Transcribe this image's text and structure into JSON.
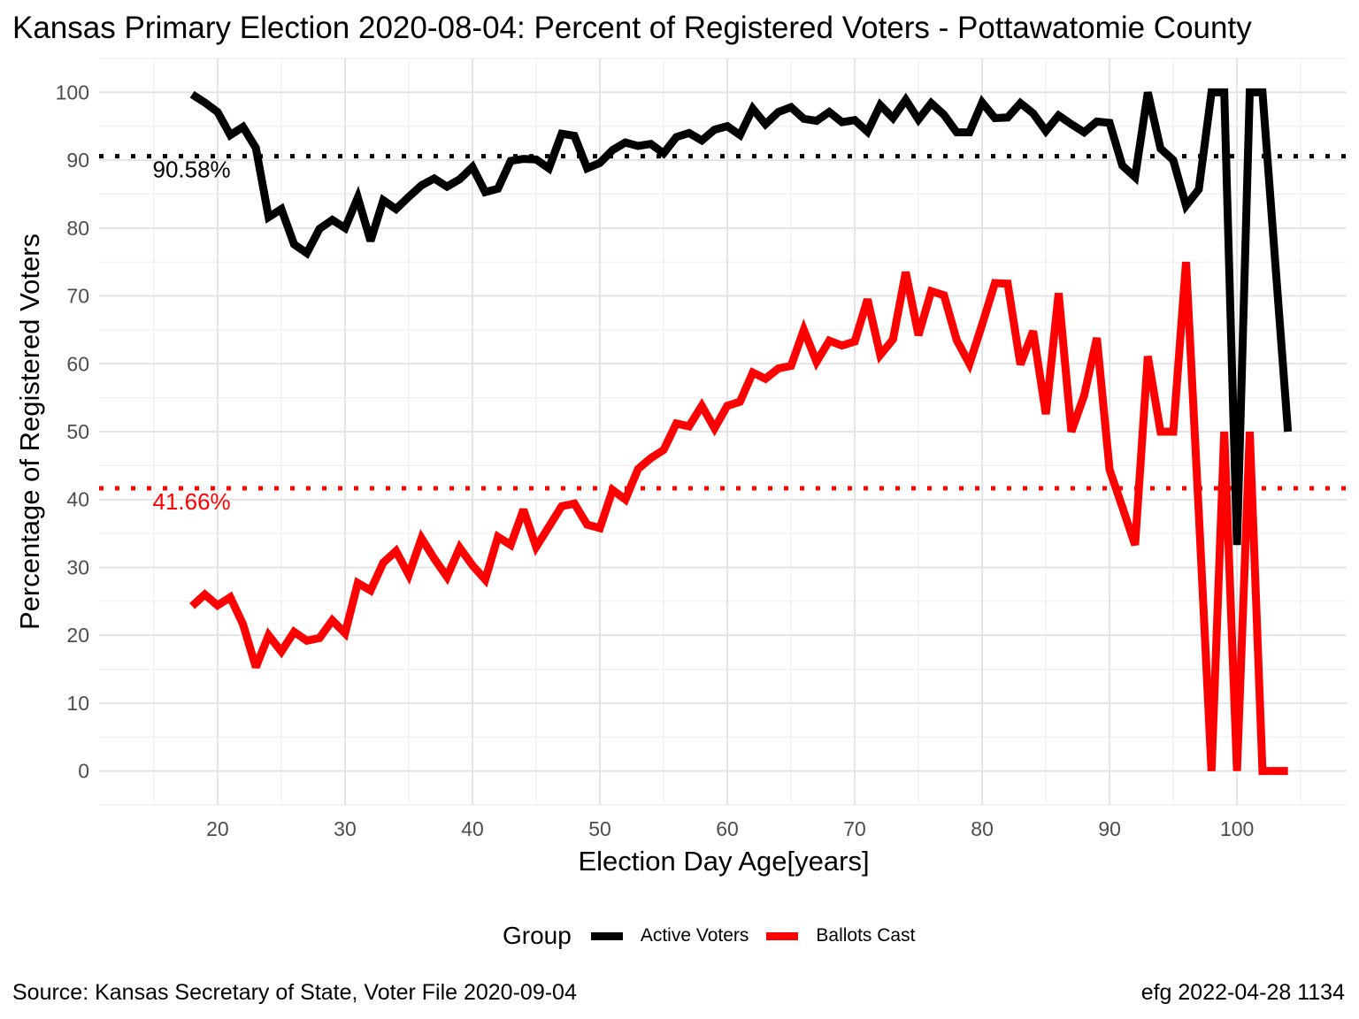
{
  "chart_data": {
    "type": "line",
    "title": "Kansas Primary Election 2020-08-04:  Percent of Registered Voters - Pottawatomie County",
    "xlabel": "Election Day Age[years]",
    "ylabel": "Percentage of Registered Voters",
    "xlim": [
      10.7,
      108.6
    ],
    "ylim": [
      -5,
      105
    ],
    "x_ticks": [
      20,
      30,
      40,
      50,
      60,
      70,
      80,
      90,
      100
    ],
    "y_ticks": [
      0,
      10,
      20,
      30,
      40,
      50,
      60,
      70,
      80,
      90,
      100
    ],
    "grid": true,
    "legend": {
      "title": "Group",
      "position": "bottom",
      "entries": [
        {
          "label": "Active Voters",
          "color": "#000000"
        },
        {
          "label": "Ballots Cast",
          "color": "#ff0000"
        }
      ]
    },
    "series": [
      {
        "name": "Active Voters",
        "color": "#000000",
        "x": [
          18,
          19,
          20,
          21,
          22,
          23,
          24,
          25,
          26,
          27,
          28,
          29,
          30,
          31,
          32,
          33,
          34,
          35,
          36,
          37,
          38,
          39,
          40,
          41,
          42,
          43,
          44,
          45,
          46,
          47,
          48,
          49,
          50,
          51,
          52,
          53,
          54,
          55,
          56,
          57,
          58,
          59,
          60,
          61,
          62,
          63,
          64,
          65,
          66,
          67,
          68,
          69,
          70,
          71,
          72,
          73,
          74,
          75,
          76,
          77,
          78,
          79,
          80,
          81,
          82,
          83,
          84,
          85,
          86,
          87,
          88,
          89,
          90,
          91,
          92,
          93,
          94,
          95,
          96,
          97,
          98,
          99,
          100,
          101,
          102,
          103,
          104
        ],
        "values": [
          99.7,
          98.5,
          97.1,
          93.7,
          94.9,
          91.8,
          81.6,
          82.8,
          77.6,
          76.3,
          79.9,
          81.2,
          80.0,
          84.5,
          78.1,
          84.1,
          82.8,
          84.6,
          86.3,
          87.3,
          86.1,
          87.2,
          89.0,
          85.3,
          85.8,
          89.9,
          90.2,
          90.1,
          88.8,
          93.9,
          93.6,
          88.8,
          89.6,
          91.5,
          92.6,
          92.1,
          92.4,
          91.0,
          93.4,
          94.0,
          92.9,
          94.5,
          95.0,
          93.7,
          97.6,
          95.3,
          97.1,
          97.8,
          96.1,
          95.8,
          97.1,
          95.6,
          95.9,
          94.2,
          98.1,
          96.2,
          98.9,
          96.0,
          98.4,
          96.7,
          94.1,
          94.1,
          98.5,
          96.2,
          96.3,
          98.4,
          96.9,
          94.3,
          96.6,
          95.3,
          94.1,
          95.7,
          95.5,
          89.2,
          87.5,
          100.0,
          91.7,
          90.0,
          83.3,
          85.7,
          100.0,
          100.0,
          33.3,
          100.0,
          100.0,
          75.0,
          50.0
        ]
      },
      {
        "name": "Ballots Cast",
        "color": "#ff0000",
        "x": [
          18,
          19,
          20,
          21,
          22,
          23,
          24,
          25,
          26,
          27,
          28,
          29,
          30,
          31,
          32,
          33,
          34,
          35,
          36,
          37,
          38,
          39,
          40,
          41,
          42,
          43,
          44,
          45,
          46,
          47,
          48,
          49,
          50,
          51,
          52,
          53,
          54,
          55,
          56,
          57,
          58,
          59,
          60,
          61,
          62,
          63,
          64,
          65,
          66,
          67,
          68,
          69,
          70,
          71,
          72,
          73,
          74,
          75,
          76,
          77,
          78,
          79,
          80,
          81,
          82,
          83,
          84,
          85,
          86,
          87,
          88,
          89,
          90,
          91,
          92,
          93,
          94,
          95,
          96,
          97,
          98,
          99,
          100,
          101,
          102,
          103,
          104
        ],
        "values": [
          24.3,
          26.0,
          24.4,
          25.6,
          21.6,
          15.3,
          20.0,
          17.6,
          20.5,
          19.2,
          19.6,
          22.2,
          20.3,
          27.7,
          26.6,
          30.7,
          32.4,
          28.9,
          34.3,
          31.3,
          28.6,
          32.9,
          30.3,
          28.2,
          34.5,
          33.3,
          38.5,
          33.0,
          36.0,
          39.0,
          39.4,
          36.3,
          35.8,
          41.4,
          40.0,
          44.5,
          46.1,
          47.3,
          51.2,
          50.8,
          53.8,
          50.5,
          53.8,
          54.4,
          58.7,
          57.8,
          59.3,
          59.7,
          65.0,
          60.3,
          63.4,
          62.7,
          63.3,
          69.5,
          61.3,
          63.6,
          73.5,
          64.2,
          70.7,
          70.1,
          63.5,
          60.0,
          65.8,
          71.9,
          71.8,
          59.9,
          64.8,
          52.6,
          70.4,
          50.0,
          55.3,
          63.8,
          44.4,
          38.9,
          33.3,
          61.1,
          50.0,
          50.0,
          75.0,
          38.1,
          0.0,
          50.0,
          0.0,
          50.0,
          0.0,
          0.0,
          0.0
        ]
      }
    ],
    "reference_lines": [
      {
        "group": "Active Voters",
        "value": 90.58,
        "label": "90.58%",
        "color": "#000000",
        "style": "dotted"
      },
      {
        "group": "Ballots Cast",
        "value": 41.66,
        "label": "41.66%",
        "color": "#ff0000",
        "style": "dotted"
      }
    ]
  },
  "caption": {
    "left": "Source:  Kansas Secretary of State, Voter File  2020-09-04",
    "right": "efg 2022-04-28 1134"
  }
}
